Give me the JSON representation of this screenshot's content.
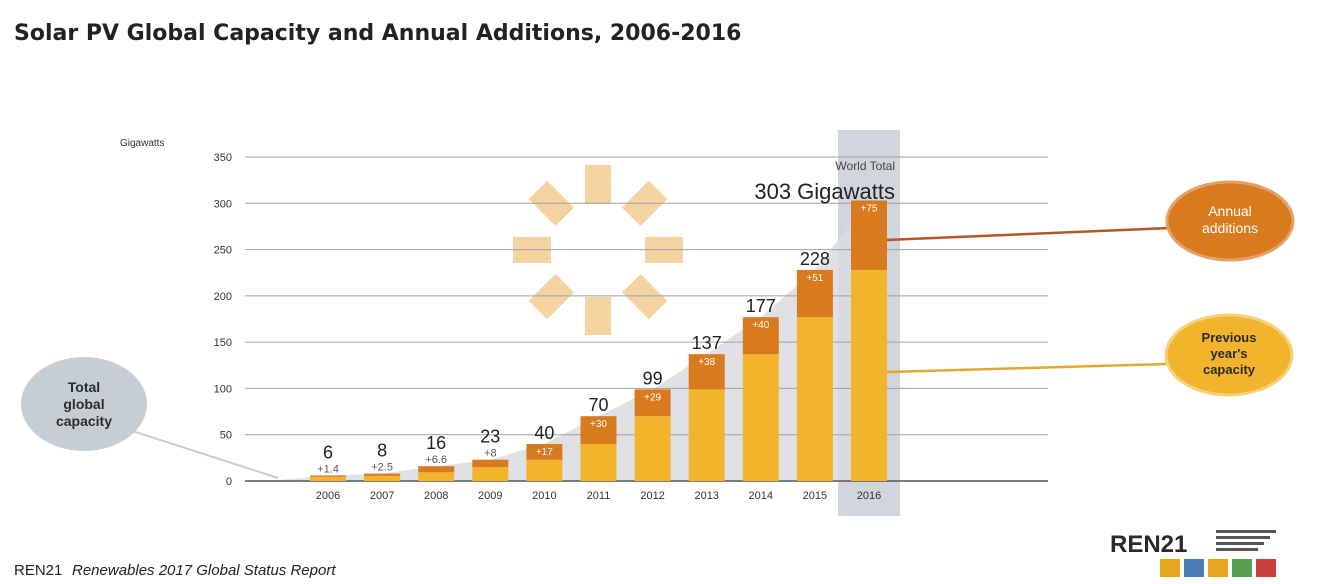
{
  "page": {
    "title": "Solar PV Global Capacity and Annual Additions, 2006-2016",
    "source_org": "REN21",
    "source_report": "Renewables 2017 Global Status Report"
  },
  "chart_data": {
    "type": "bar",
    "stacked": true,
    "title": "Solar PV Global Capacity and Annual Additions, 2006-2016",
    "ylabel": "Gigawatts",
    "xlabel": "",
    "ylim": [
      0,
      350
    ],
    "yticks": [
      0,
      50,
      100,
      150,
      200,
      250,
      300,
      350
    ],
    "grid": true,
    "categories": [
      "2006",
      "2007",
      "2008",
      "2009",
      "2010",
      "2011",
      "2012",
      "2013",
      "2014",
      "2015",
      "2016"
    ],
    "series": [
      {
        "name": "Previous year's capacity",
        "values": [
          4.6,
          5.5,
          9.4,
          15,
          23,
          40,
          70,
          99,
          137,
          177,
          228
        ]
      },
      {
        "name": "Annual additions",
        "values": [
          1.4,
          2.5,
          6.6,
          8,
          17,
          30,
          29,
          38,
          40,
          51,
          75
        ]
      }
    ],
    "totals": [
      6,
      8,
      16,
      23,
      40,
      70,
      99,
      137,
      177,
      228,
      303
    ],
    "total_labels": [
      "6",
      "8",
      "16",
      "23",
      "40",
      "70",
      "99",
      "137",
      "177",
      "228",
      ""
    ],
    "addition_labels": [
      "+1.4",
      "+2.5",
      "+6.6",
      "+8",
      "+17",
      "+30",
      "+29",
      "+38",
      "+40",
      "+51",
      "+75"
    ],
    "highlight": {
      "category": "2016",
      "line1": "World Total",
      "line2": "303 Gigawatts"
    },
    "callouts": {
      "annual_additions": "Annual additions",
      "previous_capacity": "Previous year's capacity",
      "total_capacity": "Total global capacity"
    },
    "colors": {
      "previous": "#F2B42D",
      "additions": "#D87A1E",
      "area": "#D9DCDF",
      "highlight": "#C9CED6",
      "grid": "#9DA1A6",
      "sun": "#F3D3A0",
      "bubble_total": "#C6CDD3",
      "logo_accent": "#E8A522"
    }
  }
}
